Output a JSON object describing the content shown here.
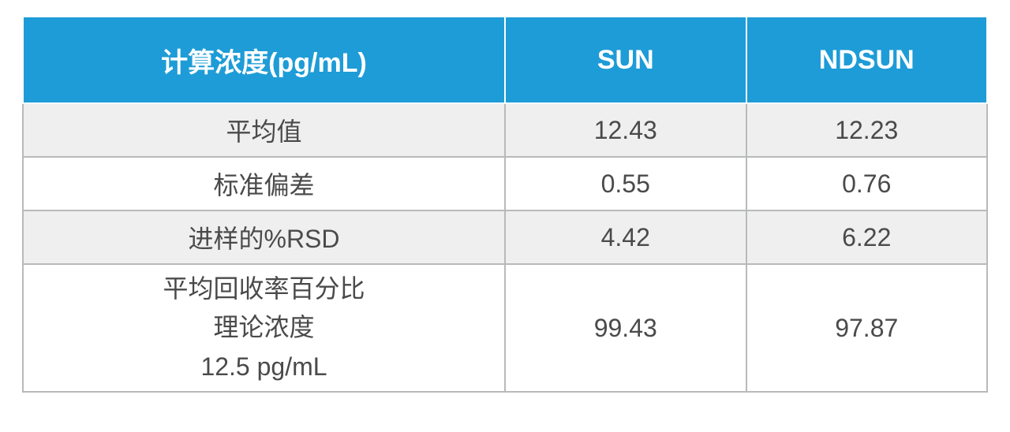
{
  "table": {
    "header_bg": "#1e9cd7",
    "header_fg": "#ffffff",
    "header_border": "#ffffff",
    "body_border": "#b7b9bb",
    "row_alt_bg": "#efefef",
    "row_bg": "#ffffff",
    "body_fg": "#4a4a4a",
    "header_fontsize": 34,
    "body_fontsize": 32,
    "columns": [
      "计算浓度(pg/mL)",
      "SUN",
      "NDSUN"
    ],
    "rows": [
      {
        "label": "平均值",
        "sun": "12.43",
        "ndsun": "12.23",
        "alt": true
      },
      {
        "label": "标准偏差",
        "sun": "0.55",
        "ndsun": "0.76",
        "alt": false
      },
      {
        "label": "进样的%RSD",
        "sun": "4.42",
        "ndsun": "6.22",
        "alt": true
      },
      {
        "label": "平均回收率百分比\n理论浓度\n12.5 pg/mL",
        "sun": "99.43",
        "ndsun": "97.87",
        "alt": false
      }
    ]
  }
}
